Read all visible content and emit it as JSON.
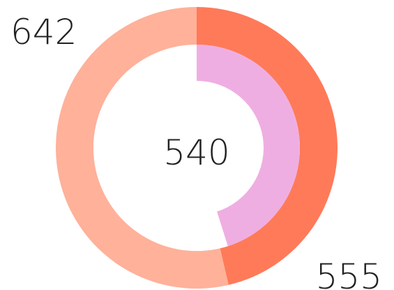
{
  "chart_data": {
    "type": "pie",
    "variant": "nested-donut",
    "title": "",
    "total_label": "540",
    "outer_ring": {
      "slices": [
        {
          "label": "555",
          "value": 555,
          "color": "#FF7A59"
        },
        {
          "label": "642",
          "value": 642,
          "color": "#FFB19A"
        }
      ]
    },
    "inner_ring": {
      "slices": [
        {
          "label": "",
          "value": 540,
          "color": "#EFAEE2"
        },
        {
          "label": "",
          "value": 657,
          "color": "#FFFFFF"
        }
      ]
    },
    "legend": "none",
    "grid": false
  }
}
